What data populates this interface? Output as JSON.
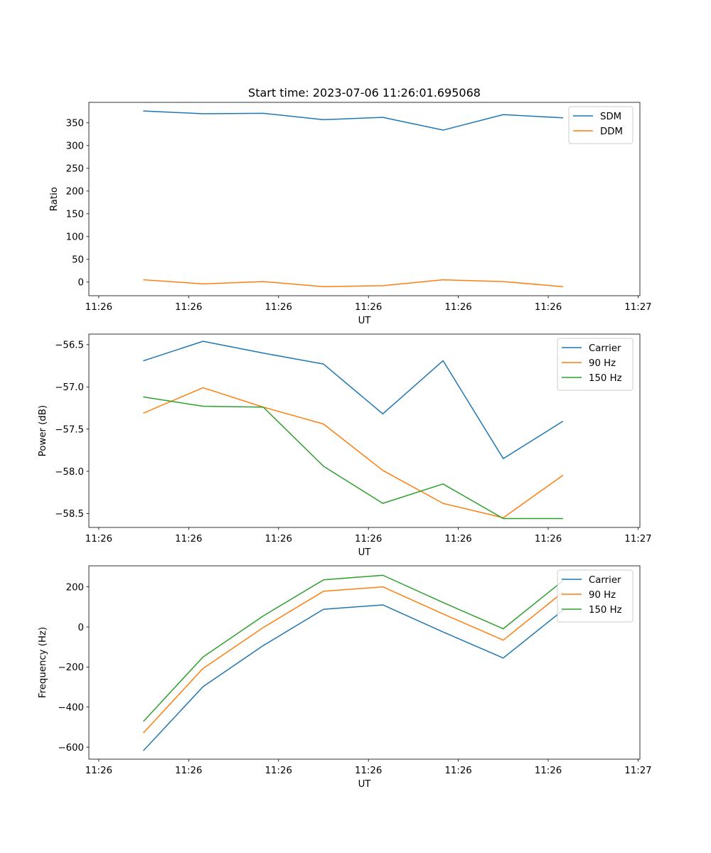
{
  "figure_title": "Start time: 2023-07-06 11:26:01.695068",
  "chart_data": [
    {
      "type": "line",
      "title": "Start time: 2023-07-06 11:26:01.695068",
      "xlabel": "UT",
      "ylabel": "Ratio",
      "x": [
        0.5,
        1.16,
        1.83,
        2.5,
        3.16,
        3.83,
        4.5,
        5.16
      ],
      "xlim": [
        -0.11,
        6.02
      ],
      "xticks": [
        0,
        1,
        2,
        3,
        4,
        5,
        6
      ],
      "xtick_labels": [
        "11:26",
        "11:26",
        "11:26",
        "11:26",
        "11:26",
        "11:26",
        "11:27"
      ],
      "ylim": [
        -30,
        395
      ],
      "yticks": [
        0,
        50,
        100,
        150,
        200,
        250,
        300,
        350
      ],
      "ytick_labels": [
        "0",
        "50",
        "100",
        "150",
        "200",
        "250",
        "300",
        "350"
      ],
      "legend_position": "top-right",
      "series": [
        {
          "name": "SDM",
          "color": "#1f77b4",
          "values": [
            376,
            370,
            371,
            357,
            362,
            334,
            368,
            361
          ]
        },
        {
          "name": "DDM",
          "color": "#ff7f0e",
          "values": [
            5,
            -4,
            1,
            -10,
            -8,
            5,
            1,
            -10
          ]
        }
      ]
    },
    {
      "type": "line",
      "xlabel": "UT",
      "ylabel": "Power (dB)",
      "x": [
        0.5,
        1.16,
        1.83,
        2.5,
        3.16,
        3.83,
        4.5,
        5.16
      ],
      "xlim": [
        -0.11,
        6.02
      ],
      "xticks": [
        0,
        1,
        2,
        3,
        4,
        5,
        6
      ],
      "xtick_labels": [
        "11:26",
        "11:26",
        "11:26",
        "11:26",
        "11:26",
        "11:26",
        "11:27"
      ],
      "ylim": [
        -58.665,
        -56.375
      ],
      "yticks": [
        -58.5,
        -58.0,
        -57.5,
        -57.0,
        -56.5
      ],
      "ytick_labels": [
        "−58.5",
        "−58.0",
        "−57.5",
        "−57.0",
        "−56.5"
      ],
      "legend_position": "top-right",
      "series": [
        {
          "name": "Carrier",
          "color": "#1f77b4",
          "values": [
            -56.69,
            -56.46,
            -56.6,
            -56.73,
            -57.32,
            -56.69,
            -57.85,
            -57.41
          ]
        },
        {
          "name": "90 Hz",
          "color": "#ff7f0e",
          "values": [
            -57.31,
            -57.01,
            -57.24,
            -57.44,
            -57.99,
            -58.38,
            -58.55,
            -58.05
          ]
        },
        {
          "name": "150 Hz",
          "color": "#2ca02c",
          "values": [
            -57.12,
            -57.23,
            -57.24,
            -57.94,
            -58.38,
            -58.15,
            -58.56,
            -58.56
          ]
        }
      ]
    },
    {
      "type": "line",
      "xlabel": "UT",
      "ylabel": "Frequency (Hz)",
      "x": [
        0.5,
        1.16,
        1.83,
        2.5,
        3.16,
        3.83,
        4.5,
        5.16
      ],
      "xlim": [
        -0.11,
        6.02
      ],
      "xticks": [
        0,
        1,
        2,
        3,
        4,
        5,
        6
      ],
      "xtick_labels": [
        "11:26",
        "11:26",
        "11:26",
        "11:26",
        "11:26",
        "11:26",
        "11:27"
      ],
      "ylim": [
        -660,
        305
      ],
      "yticks": [
        -600,
        -400,
        -200,
        0,
        200
      ],
      "ytick_labels": [
        "−600",
        "−400",
        "−200",
        "0",
        "200"
      ],
      "legend_position": "top-right",
      "series": [
        {
          "name": "Carrier",
          "color": "#1f77b4",
          "values": [
            -616,
            -298,
            -93,
            88,
            110,
            -25,
            -155,
            82
          ]
        },
        {
          "name": "90 Hz",
          "color": "#ff7f0e",
          "values": [
            -527,
            -207,
            -3,
            178,
            200,
            65,
            -66,
            172
          ]
        },
        {
          "name": "150 Hz",
          "color": "#2ca02c",
          "values": [
            -470,
            -150,
            55,
            235,
            258,
            122,
            -9,
            229
          ]
        }
      ]
    }
  ]
}
